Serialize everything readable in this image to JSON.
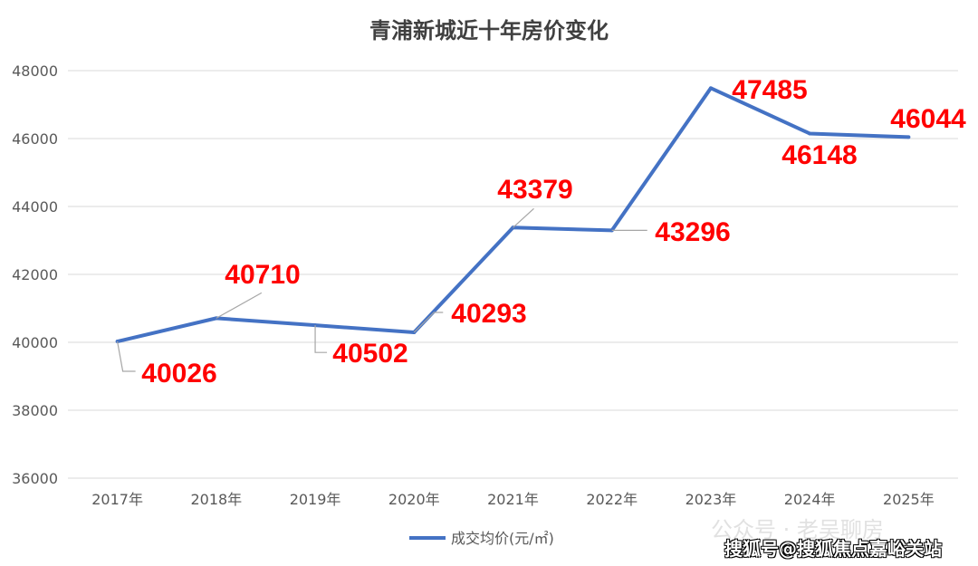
{
  "chart_data": {
    "type": "line",
    "title": "青浦新城近十年房价变化",
    "categories": [
      "2017年",
      "2018年",
      "2019年",
      "2020年",
      "2021年",
      "2022年",
      "2023年",
      "2024年",
      "2025年"
    ],
    "series": [
      {
        "name": "成交均价(元/㎡)",
        "values": [
          40026,
          40710,
          40502,
          40293,
          43379,
          43296,
          47485,
          46148,
          46044
        ],
        "color": "#4472C4"
      }
    ],
    "data_labels": [
      "40026",
      "40710",
      "40502",
      "40293",
      "43379",
      "43296",
      "47485",
      "46148",
      "46044"
    ],
    "data_label_color": "#FF0000",
    "ylim": [
      36000,
      48000
    ],
    "yticks": [
      "36000",
      "38000",
      "40000",
      "42000",
      "44000",
      "46000",
      "48000"
    ],
    "xlabel": "",
    "ylabel": "",
    "grid": true,
    "legend": "bottom"
  },
  "watermark": {
    "line1": "公众号 · 老吴聊房",
    "line2": "搜狐号@搜狐焦点嘉峪关站"
  }
}
